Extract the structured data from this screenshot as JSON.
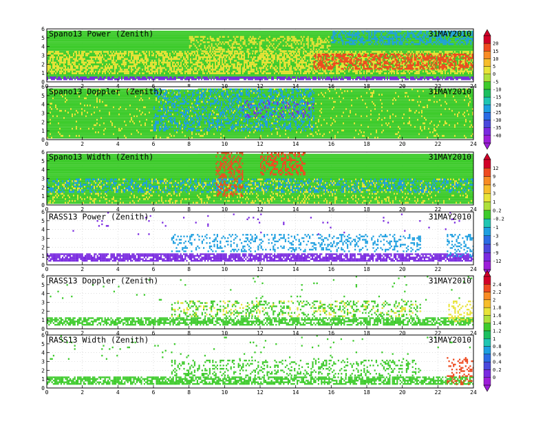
{
  "chart_data": [
    {
      "type": "heatmap",
      "title": "Spano13 Power (Zenith)",
      "date": "31MAY2010",
      "x": {
        "min": 0,
        "max": 24,
        "ticks": [
          0,
          2,
          4,
          6,
          8,
          10,
          12,
          14,
          16,
          18,
          20,
          22,
          24
        ]
      },
      "y": {
        "min": 0,
        "max": 6,
        "ticks": [
          0,
          1,
          2,
          3,
          4,
          5,
          6
        ]
      },
      "colorbar_group": 0,
      "sparse": false,
      "layers": [
        {
          "x0": 0,
          "x1": 24,
          "y0": 0.4,
          "y1": 5.8,
          "level": "low",
          "density": 1.0
        },
        {
          "x0": 0,
          "x1": 24,
          "y0": 1.0,
          "y1": 3.5,
          "level": "mid",
          "density": 0.55
        },
        {
          "x0": 15,
          "x1": 24,
          "y0": 1.5,
          "y1": 3.2,
          "level": "high",
          "density": 0.55
        },
        {
          "x0": 8,
          "x1": 16,
          "y0": 3.5,
          "y1": 5.2,
          "level": "mid",
          "density": 0.35
        },
        {
          "x0": 0,
          "x1": 24,
          "y0": 0.3,
          "y1": 0.6,
          "level": "min",
          "density": 0.7
        },
        {
          "x0": 16,
          "x1": 24,
          "y0": 4.2,
          "y1": 5.8,
          "level": "lowmin",
          "density": 0.5
        }
      ],
      "gaps": [
        {
          "x0": 6.4,
          "x1": 8.5,
          "y0": 5.8,
          "y1": 6.0
        }
      ]
    },
    {
      "type": "heatmap",
      "title": "Spano13 Doppler (Zenith)",
      "date": "31MAY2010",
      "x": {
        "min": 0,
        "max": 24,
        "ticks": [
          0,
          2,
          4,
          6,
          8,
          10,
          12,
          14,
          16,
          18,
          20,
          22,
          24
        ]
      },
      "y": {
        "min": 0,
        "max": 6,
        "ticks": [
          0,
          1,
          2,
          3,
          4,
          5,
          6
        ]
      },
      "colorbar_group": 0,
      "sparse": false,
      "layers": [
        {
          "x0": 0,
          "x1": 24,
          "y0": 0.2,
          "y1": 5.8,
          "level": "low",
          "density": 1.0
        },
        {
          "x0": 0,
          "x1": 24,
          "y0": 0.2,
          "y1": 5.8,
          "level": "mid",
          "density": 0.08
        },
        {
          "x0": 6,
          "x1": 15,
          "y0": 1.0,
          "y1": 5.8,
          "level": "lowmin",
          "density": 0.35
        },
        {
          "x0": 11,
          "x1": 15,
          "y0": 2.5,
          "y1": 4.5,
          "level": "min",
          "density": 0.15
        }
      ],
      "gaps": [
        {
          "x0": 6.4,
          "x1": 8.5,
          "y0": 5.7,
          "y1": 6.0
        }
      ]
    },
    {
      "type": "heatmap",
      "title": "Spano13 Width (Zenith)",
      "date": "31MAY2010",
      "x": {
        "min": 0,
        "max": 24,
        "ticks": [
          0,
          2,
          4,
          6,
          8,
          10,
          12,
          14,
          16,
          18,
          20,
          22,
          24
        ]
      },
      "y": {
        "min": 0,
        "max": 6,
        "ticks": [
          0,
          1,
          2,
          3,
          4,
          5,
          6
        ]
      },
      "colorbar_group": 1,
      "sparse": false,
      "layers": [
        {
          "x0": 0,
          "x1": 24,
          "y0": 0.3,
          "y1": 5.8,
          "level": "low",
          "density": 1.0
        },
        {
          "x0": 0,
          "x1": 24,
          "y0": 0.3,
          "y1": 3.0,
          "level": "mid",
          "density": 0.2
        },
        {
          "x0": 9.5,
          "x1": 11,
          "y0": 1.0,
          "y1": 6.0,
          "level": "high",
          "density": 0.45
        },
        {
          "x0": 12,
          "x1": 14.5,
          "y0": 3.5,
          "y1": 6.0,
          "level": "high",
          "density": 0.4
        },
        {
          "x0": 0,
          "x1": 24,
          "y0": 1.5,
          "y1": 3.0,
          "level": "lowmin",
          "density": 0.3
        }
      ],
      "gaps": [
        {
          "x0": 6.4,
          "x1": 8.5,
          "y0": 5.8,
          "y1": 6.0
        }
      ]
    },
    {
      "type": "heatmap",
      "title": "RASS13 Power (Zenith)",
      "date": "31MAY2010",
      "x": {
        "min": 0,
        "max": 24,
        "ticks": [
          0,
          2,
          4,
          6,
          8,
          10,
          12,
          14,
          16,
          18,
          20,
          22,
          24
        ]
      },
      "y": {
        "min": 0,
        "max": 6,
        "ticks": [
          0,
          1,
          2,
          3,
          4,
          5,
          6
        ]
      },
      "colorbar_group": 1,
      "sparse": true,
      "layers": [
        {
          "x0": 0,
          "x1": 24,
          "y0": 0.4,
          "y1": 1.3,
          "level": "min",
          "density": 0.8
        },
        {
          "x0": 7,
          "x1": 21,
          "y0": 1.5,
          "y1": 3.5,
          "level": "lowmin",
          "density": 0.25
        },
        {
          "x0": 22.5,
          "x1": 24,
          "y0": 1.0,
          "y1": 3.5,
          "level": "lowmin",
          "density": 0.3
        },
        {
          "x0": 0,
          "x1": 24,
          "y0": 3.5,
          "y1": 6.0,
          "level": "min",
          "density": 0.015
        }
      ],
      "gaps": []
    },
    {
      "type": "heatmap",
      "title": "RASS13 Doppler (Zenith)",
      "date": "31MAY2010",
      "x": {
        "min": 0,
        "max": 24,
        "ticks": [
          0,
          2,
          4,
          6,
          8,
          10,
          12,
          14,
          16,
          18,
          20,
          22,
          24
        ]
      },
      "y": {
        "min": 0,
        "max": 6,
        "ticks": [
          0,
          1,
          2,
          3,
          4,
          5,
          6
        ]
      },
      "colorbar_group": 2,
      "sparse": true,
      "layers": [
        {
          "x0": 0,
          "x1": 24,
          "y0": 0.4,
          "y1": 1.3,
          "level": "low",
          "density": 0.7
        },
        {
          "x0": 7,
          "x1": 21,
          "y0": 1.5,
          "y1": 3.2,
          "level": "low",
          "density": 0.25
        },
        {
          "x0": 7,
          "x1": 21,
          "y0": 1.5,
          "y1": 3.2,
          "level": "mid",
          "density": 0.08
        },
        {
          "x0": 22.5,
          "x1": 24,
          "y0": 0.8,
          "y1": 3.2,
          "level": "mid",
          "density": 0.3
        },
        {
          "x0": 0,
          "x1": 24,
          "y0": 3.2,
          "y1": 6.0,
          "level": "low",
          "density": 0.015
        }
      ],
      "gaps": []
    },
    {
      "type": "heatmap",
      "title": "RASS13 Width (Zenith)",
      "date": "31MAY2010",
      "x": {
        "min": 0,
        "max": 24,
        "ticks": [
          0,
          2,
          4,
          6,
          8,
          10,
          12,
          14,
          16,
          18,
          20,
          22,
          24
        ]
      },
      "y": {
        "min": 0,
        "max": 6,
        "ticks": [
          0,
          1,
          2,
          3,
          4,
          5,
          6
        ]
      },
      "colorbar_group": 2,
      "sparse": true,
      "layers": [
        {
          "x0": 0,
          "x1": 24,
          "y0": 0.4,
          "y1": 1.3,
          "level": "low",
          "density": 0.7
        },
        {
          "x0": 7,
          "x1": 21,
          "y0": 1.5,
          "y1": 3.2,
          "level": "low",
          "density": 0.25
        },
        {
          "x0": 22.5,
          "x1": 24,
          "y0": 0.5,
          "y1": 3.5,
          "level": "high",
          "density": 0.25
        },
        {
          "x0": 0,
          "x1": 24,
          "y0": 3.2,
          "y1": 6.0,
          "level": "low",
          "density": 0.015
        }
      ],
      "gaps": []
    }
  ],
  "colorbars": [
    {
      "labels": [
        "20",
        "15",
        "10",
        "5",
        "0",
        "-5",
        "-10",
        "-15",
        "-20",
        "-25",
        "-30",
        "-35",
        "-40"
      ],
      "colors": [
        "#d10028",
        "#ee4a20",
        "#f88c24",
        "#f7bd2b",
        "#e8e338",
        "#aee03a",
        "#3ecb2c",
        "#1cbf5f",
        "#20c6b2",
        "#1e9fe0",
        "#2b6ce4",
        "#4a48dc",
        "#7a2ae0",
        "#9c1ed8"
      ]
    },
    {
      "labels": [
        "12",
        "9",
        "6",
        "3",
        "1",
        "0.2",
        "-0.2",
        "-1",
        "-3",
        "-6",
        "-9",
        "-12"
      ],
      "colors": [
        "#d10028",
        "#ee4a20",
        "#f88c24",
        "#f7bd2b",
        "#e8e338",
        "#aee03a",
        "#3ecb2c",
        "#20c6b2",
        "#1e9fe0",
        "#2b6ce4",
        "#4a48dc",
        "#7a2ae0",
        "#9c1ed8"
      ]
    },
    {
      "labels": [
        "2.4",
        "2.2",
        "2",
        "1.8",
        "1.6",
        "1.4",
        "1.2",
        "1",
        "0.8",
        "0.6",
        "0.4",
        "0.2",
        "0"
      ],
      "colors": [
        "#d10028",
        "#ee4a20",
        "#f88c24",
        "#f7bd2b",
        "#e8e338",
        "#aee03a",
        "#3ecb2c",
        "#1cbf5f",
        "#20c6b2",
        "#1e9fe0",
        "#2b6ce4",
        "#4a48dc",
        "#7a2ae0",
        "#9c1ed8"
      ]
    }
  ],
  "palette": {
    "min": "#7a2ae0",
    "lowmin": "#1e9fe0",
    "low": "#3ecb2c",
    "mid": "#e8e338",
    "high": "#ee4a20",
    "grid": "#c8c8c8",
    "frame": "#000000"
  }
}
